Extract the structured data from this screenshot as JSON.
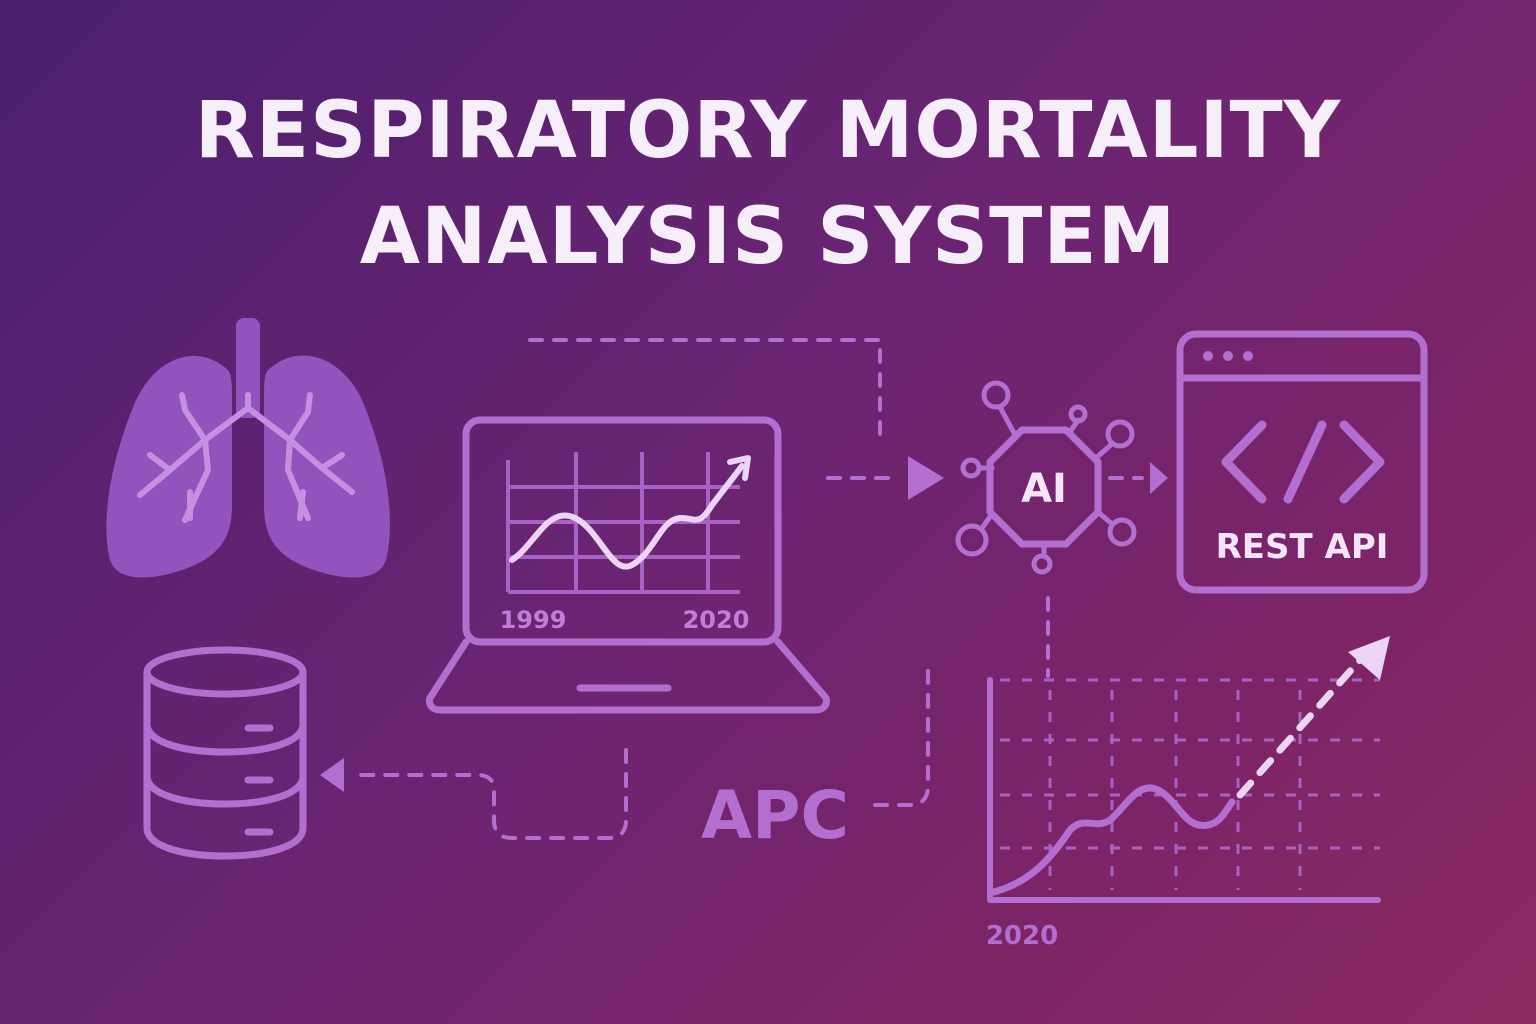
{
  "title": {
    "line1": "RESPIRATORY MORTALITY",
    "line2": "ANALYSIS SYSTEM"
  },
  "laptop_chart": {
    "start_year": "1999",
    "end_year": "2020"
  },
  "ai_node": {
    "label": "AI"
  },
  "api_window": {
    "label": "REST API"
  },
  "apc_label": "APC",
  "trend_chart": {
    "year": "2020"
  },
  "colors": {
    "background_start": "#4a1f6e",
    "background_end": "#8a2a62",
    "icon_purple": "#b36fd0",
    "lung_fill": "#9b5cc9",
    "label_light": "#f4e6f8"
  },
  "icons": [
    "lungs-icon",
    "database-icon",
    "laptop-chart-icon",
    "ai-chip-icon",
    "code-window-icon",
    "trend-chart-icon"
  ]
}
